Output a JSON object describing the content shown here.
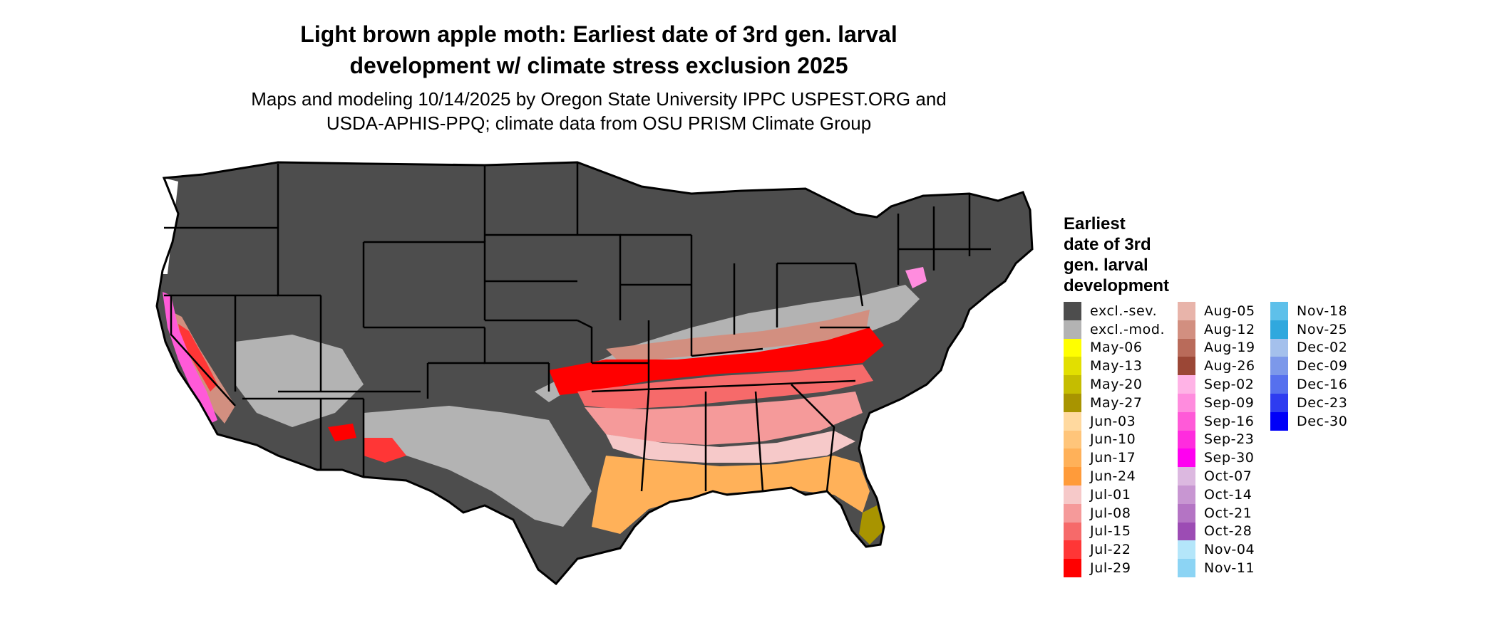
{
  "title_line1": "Light brown apple moth: Earliest date of 3rd gen. larval",
  "title_line2": "development w/ climate stress exclusion 2025",
  "subtitle_line1": "Maps and modeling 10/14/2025 by Oregon State University IPPC USPEST.ORG and",
  "subtitle_line2": "USDA-APHIS-PPQ; climate data from OSU PRISM Climate Group",
  "legend": {
    "title_lines": [
      "Earliest",
      "date of 3rd",
      "gen. larval",
      "development"
    ],
    "items": [
      {
        "label": "excl.-sev.",
        "color": "#4d4d4d"
      },
      {
        "label": "excl.-mod.",
        "color": "#b3b3b3"
      },
      {
        "label": "May-06",
        "color": "#ffff00"
      },
      {
        "label": "May-13",
        "color": "#e2df00"
      },
      {
        "label": "May-20",
        "color": "#c5bd00"
      },
      {
        "label": "May-27",
        "color": "#a89400"
      },
      {
        "label": "Jun-03",
        "color": "#ffd99f"
      },
      {
        "label": "Jun-10",
        "color": "#ffc57a"
      },
      {
        "label": "Jun-17",
        "color": "#ffb159"
      },
      {
        "label": "Jun-24",
        "color": "#ff9b3a"
      },
      {
        "label": "Jul-01",
        "color": "#f6c9c9"
      },
      {
        "label": "Jul-08",
        "color": "#f59a9a"
      },
      {
        "label": "Jul-15",
        "color": "#f66a6a"
      },
      {
        "label": "Jul-22",
        "color": "#ff3636"
      },
      {
        "label": "Jul-29",
        "color": "#ff0000"
      },
      {
        "label": "Aug-05",
        "color": "#e8b4aa"
      },
      {
        "label": "Aug-12",
        "color": "#d28f80"
      },
      {
        "label": "Aug-19",
        "color": "#b96b5a"
      },
      {
        "label": "Aug-26",
        "color": "#9b4736"
      },
      {
        "label": "Sep-02",
        "color": "#ffb3e6"
      },
      {
        "label": "Sep-09",
        "color": "#ff8cde"
      },
      {
        "label": "Sep-16",
        "color": "#ff5ad8"
      },
      {
        "label": "Sep-23",
        "color": "#ff2cde"
      },
      {
        "label": "Sep-30",
        "color": "#ff00f0"
      },
      {
        "label": "Oct-07",
        "color": "#dcb8e0"
      },
      {
        "label": "Oct-14",
        "color": "#c896d2"
      },
      {
        "label": "Oct-21",
        "color": "#b474c4"
      },
      {
        "label": "Oct-28",
        "color": "#9c4cb4"
      },
      {
        "label": "Nov-04",
        "color": "#b4e6fa"
      },
      {
        "label": "Nov-11",
        "color": "#8cd4f4"
      },
      {
        "label": "Nov-18",
        "color": "#5ec0ea"
      },
      {
        "label": "Nov-25",
        "color": "#30a8de"
      },
      {
        "label": "Dec-02",
        "color": "#a4c0ec"
      },
      {
        "label": "Dec-09",
        "color": "#7c98ea"
      },
      {
        "label": "Dec-16",
        "color": "#5670ee"
      },
      {
        "label": "Dec-23",
        "color": "#2e3cf0"
      },
      {
        "label": "Dec-30",
        "color": "#0000f8"
      }
    ]
  }
}
